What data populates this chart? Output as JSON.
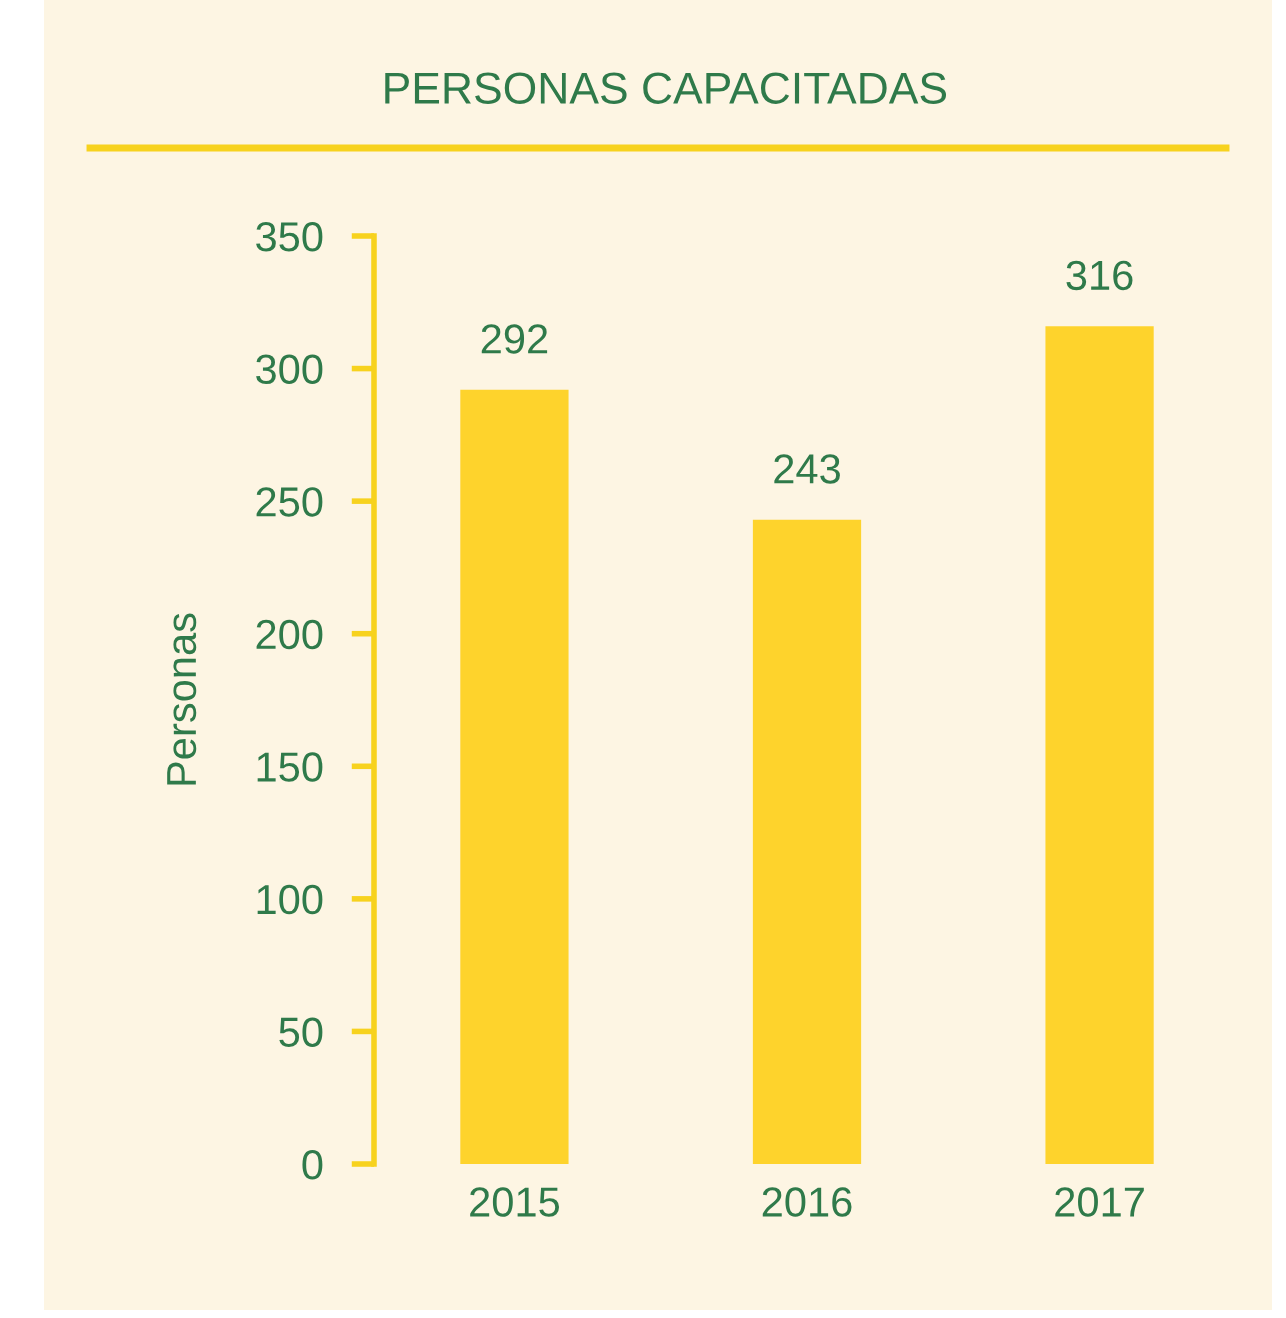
{
  "chart_data": {
    "type": "bar",
    "title": "PERSONAS CAPACITADAS",
    "ylabel": "Personas",
    "categories": [
      "2015",
      "2016",
      "2017"
    ],
    "values": [
      292,
      243,
      316
    ],
    "color": "#fed32c",
    "ylim": [
      0,
      350
    ],
    "yticks": [
      0,
      50,
      100,
      150,
      200,
      250,
      300,
      350
    ],
    "data_labels": true
  }
}
